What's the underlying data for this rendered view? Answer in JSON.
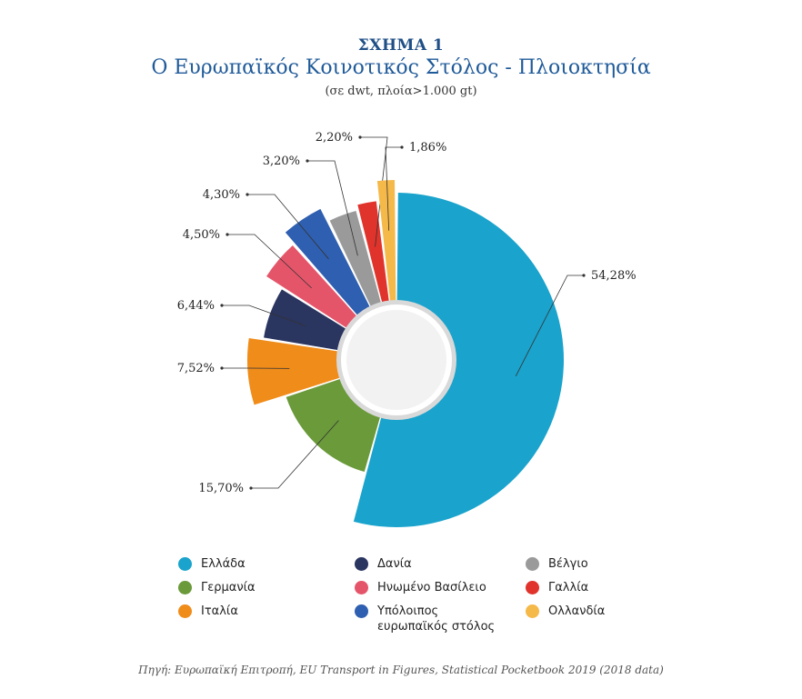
{
  "figure": {
    "label": "ΣΧΗΜΑ 1",
    "title": "Ο Ευρωπαϊκός Κοινοτικός Στόλος - Πλοιοκτησία",
    "subtitle": "(σε dwt, πλοία>1.000 gt)",
    "source": "Πηγή: Ευρωπαϊκή Επιτροπή, EU Transport in Figures, Statistical Pocketbook 2019 (2018 data)"
  },
  "chart_data": {
    "type": "pie",
    "variant": "exploded donut",
    "title": "Ο Ευρωπαϊκός Κοινοτικός Στόλος - Πλοιοκτησία",
    "slices": [
      {
        "name": "Ελλάδα",
        "value": 54.28,
        "label": "54,28%",
        "color": "#1aa3cc"
      },
      {
        "name": "Γερμανία",
        "value": 15.7,
        "label": "15,70%",
        "color": "#6a9a3a"
      },
      {
        "name": "Ιταλία",
        "value": 7.52,
        "label": "7,52%",
        "color": "#f08c1a"
      },
      {
        "name": "Δανία",
        "value": 6.44,
        "label": "6,44%",
        "color": "#2a3560"
      },
      {
        "name": "Ηνωμένο Βασίλειο",
        "value": 4.5,
        "label": "4,50%",
        "color": "#e5556a"
      },
      {
        "name": "Υπόλοιπος ευρωπαϊκός στόλος",
        "value": 4.3,
        "label": "4,30%",
        "color": "#2f5fb0"
      },
      {
        "name": "Βέλγιο",
        "value": 3.2,
        "label": "3,20%",
        "color": "#9a9a9a"
      },
      {
        "name": "Γαλλία",
        "value": 2.2,
        "label": "2,20%",
        "color": "#e0332b"
      },
      {
        "name": "Ολλανδία",
        "value": 1.86,
        "label": "1,86%",
        "color": "#f5b94a"
      }
    ],
    "legend_placement": "bottom"
  },
  "legend": [
    {
      "name": "Ελλάδα",
      "color": "#1aa3cc"
    },
    {
      "name": "Δανία",
      "color": "#2a3560"
    },
    {
      "name": "Βέλγιο",
      "color": "#9a9a9a"
    },
    {
      "name": "Γερμανία",
      "color": "#6a9a3a"
    },
    {
      "name": "Ηνωμένο Βασίλειο",
      "color": "#e5556a"
    },
    {
      "name": "Γαλλία",
      "color": "#e0332b"
    },
    {
      "name": "Ιταλία",
      "color": "#f08c1a"
    },
    {
      "name": "Υπόλοιπος ευρωπαϊκός στόλος",
      "color": "#2f5fb0"
    },
    {
      "name": "Ολλανδία",
      "color": "#f5b94a"
    }
  ]
}
